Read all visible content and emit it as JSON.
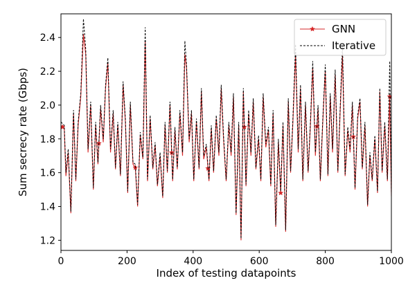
{
  "chart_data": {
    "type": "line",
    "xlabel": "Index of testing datapoints",
    "ylabel": "Sum secrecy rate (Gbps)",
    "xlim": [
      0,
      1000
    ],
    "ylim": [
      1.14,
      2.54
    ],
    "xticks": [
      0,
      200,
      400,
      600,
      800,
      1000
    ],
    "yticks": [
      1.2,
      1.4,
      1.6,
      1.8,
      2.0,
      2.2,
      2.4
    ],
    "xtick_labels": [
      "0",
      "200",
      "400",
      "600",
      "800",
      "1000"
    ],
    "ytick_labels": [
      "1.2",
      "1.4",
      "1.6",
      "1.8",
      "2.0",
      "2.2",
      "2.4"
    ],
    "grid": false,
    "legend": "top-right",
    "series": [
      {
        "name": "GNN",
        "color": "#d62728",
        "linestyle": "solid",
        "marker": "star",
        "markevery": 110,
        "x": [
          0,
          10,
          15,
          22,
          30,
          38,
          45,
          52,
          60,
          68,
          75,
          82,
          90,
          98,
          105,
          112,
          120,
          128,
          135,
          142,
          150,
          158,
          165,
          172,
          180,
          188,
          195,
          202,
          210,
          218,
          225,
          232,
          240,
          248,
          255,
          262,
          270,
          278,
          285,
          292,
          300,
          308,
          315,
          322,
          330,
          338,
          345,
          352,
          360,
          368,
          375,
          380,
          388,
          395,
          402,
          410,
          418,
          425,
          432,
          440,
          448,
          455,
          462,
          470,
          478,
          485,
          492,
          500,
          508,
          515,
          522,
          530,
          538,
          545,
          552,
          560,
          568,
          575,
          582,
          590,
          598,
          605,
          612,
          620,
          628,
          635,
          642,
          650,
          658,
          665,
          672,
          680,
          688,
          695,
          702,
          710,
          718,
          725,
          732,
          740,
          748,
          755,
          762,
          770,
          778,
          785,
          792,
          800,
          808,
          815,
          822,
          830,
          838,
          845,
          852,
          860,
          868,
          875,
          882,
          890,
          898,
          905,
          912,
          920,
          928,
          935,
          942,
          950,
          958,
          965,
          972,
          980,
          988,
          995,
          1000
        ],
        "y": [
          1.88,
          1.86,
          1.58,
          1.72,
          1.36,
          1.95,
          1.55,
          1.88,
          2.05,
          2.42,
          2.3,
          1.72,
          2.0,
          1.5,
          1.88,
          1.65,
          1.98,
          1.78,
          2.1,
          2.25,
          1.72,
          1.95,
          1.62,
          1.88,
          1.58,
          2.12,
          1.9,
          1.48,
          2.0,
          1.65,
          1.63,
          1.4,
          1.82,
          1.68,
          2.38,
          1.55,
          1.92,
          1.62,
          1.76,
          1.52,
          1.7,
          1.45,
          1.88,
          1.6,
          2.0,
          1.55,
          1.85,
          1.62,
          1.95,
          1.7,
          2.3,
          2.22,
          1.78,
          1.95,
          1.55,
          1.9,
          1.62,
          2.08,
          1.68,
          1.75,
          1.55,
          1.86,
          1.6,
          1.92,
          1.7,
          2.1,
          1.8,
          1.55,
          1.88,
          1.7,
          2.05,
          1.35,
          1.88,
          1.2,
          2.08,
          1.52,
          1.95,
          1.7,
          2.02,
          1.62,
          1.8,
          1.55,
          2.05,
          1.75,
          1.85,
          1.52,
          1.95,
          1.28,
          1.78,
          1.48,
          1.88,
          1.25,
          2.02,
          1.6,
          1.9,
          2.3,
          1.72,
          2.1,
          1.55,
          2.0,
          1.6,
          1.88,
          2.22,
          1.7,
          1.98,
          1.55,
          1.88,
          2.2,
          1.58,
          2.05,
          1.72,
          2.18,
          1.6,
          1.96,
          2.3,
          1.58,
          1.85,
          1.72,
          2.0,
          1.5,
          1.92,
          2.02,
          1.62,
          1.88,
          1.4,
          1.7,
          1.55,
          1.8,
          1.48,
          2.08,
          1.6,
          1.88,
          1.55,
          2.05,
          1.46
        ]
      },
      {
        "name": "Iterative",
        "color": "#000000",
        "linestyle": "dashed",
        "marker": "none",
        "x": [
          0,
          10,
          15,
          22,
          30,
          38,
          45,
          52,
          60,
          68,
          75,
          82,
          90,
          98,
          105,
          112,
          120,
          128,
          135,
          142,
          150,
          158,
          165,
          172,
          180,
          188,
          195,
          202,
          210,
          218,
          225,
          232,
          240,
          248,
          255,
          262,
          270,
          278,
          285,
          292,
          300,
          308,
          315,
          322,
          330,
          338,
          345,
          352,
          360,
          368,
          375,
          380,
          388,
          395,
          402,
          410,
          418,
          425,
          432,
          440,
          448,
          455,
          462,
          470,
          478,
          485,
          492,
          500,
          508,
          515,
          522,
          530,
          538,
          545,
          552,
          560,
          568,
          575,
          582,
          590,
          598,
          605,
          612,
          620,
          628,
          635,
          642,
          650,
          658,
          665,
          672,
          680,
          688,
          695,
          702,
          710,
          718,
          725,
          732,
          740,
          748,
          755,
          762,
          770,
          778,
          785,
          792,
          800,
          808,
          815,
          822,
          830,
          838,
          845,
          852,
          860,
          868,
          875,
          882,
          890,
          898,
          905,
          912,
          920,
          928,
          935,
          942,
          950,
          958,
          965,
          972,
          980,
          988,
          995,
          1000
        ],
        "y": [
          1.9,
          1.88,
          1.6,
          1.74,
          1.37,
          1.97,
          1.56,
          1.9,
          2.07,
          2.51,
          2.33,
          1.74,
          2.02,
          1.51,
          1.9,
          1.66,
          2.0,
          1.8,
          2.12,
          2.28,
          1.74,
          1.97,
          1.63,
          1.9,
          1.59,
          2.14,
          1.92,
          1.49,
          2.02,
          1.66,
          1.65,
          1.41,
          1.84,
          1.69,
          2.46,
          1.56,
          1.94,
          1.63,
          1.78,
          1.53,
          1.72,
          1.46,
          1.9,
          1.61,
          2.02,
          1.56,
          1.87,
          1.63,
          1.97,
          1.72,
          2.38,
          2.24,
          1.8,
          1.97,
          1.56,
          1.92,
          1.63,
          2.1,
          1.7,
          1.77,
          1.56,
          1.88,
          1.61,
          1.94,
          1.72,
          2.12,
          1.82,
          1.56,
          1.9,
          1.72,
          2.07,
          1.36,
          1.9,
          1.21,
          2.1,
          1.53,
          1.97,
          1.72,
          2.04,
          1.63,
          1.82,
          1.56,
          2.07,
          1.77,
          1.87,
          1.53,
          1.97,
          1.29,
          1.8,
          1.49,
          1.9,
          1.26,
          2.04,
          1.61,
          1.92,
          2.36,
          1.74,
          2.12,
          1.56,
          2.02,
          1.61,
          1.9,
          2.26,
          1.72,
          2.0,
          1.56,
          1.9,
          2.24,
          1.59,
          2.07,
          1.74,
          2.21,
          1.61,
          1.98,
          2.36,
          1.59,
          1.87,
          1.74,
          2.02,
          1.51,
          1.94,
          2.04,
          1.63,
          1.9,
          1.41,
          1.72,
          1.56,
          1.82,
          1.49,
          2.1,
          1.61,
          1.9,
          1.56,
          2.26,
          1.47
        ]
      }
    ]
  }
}
